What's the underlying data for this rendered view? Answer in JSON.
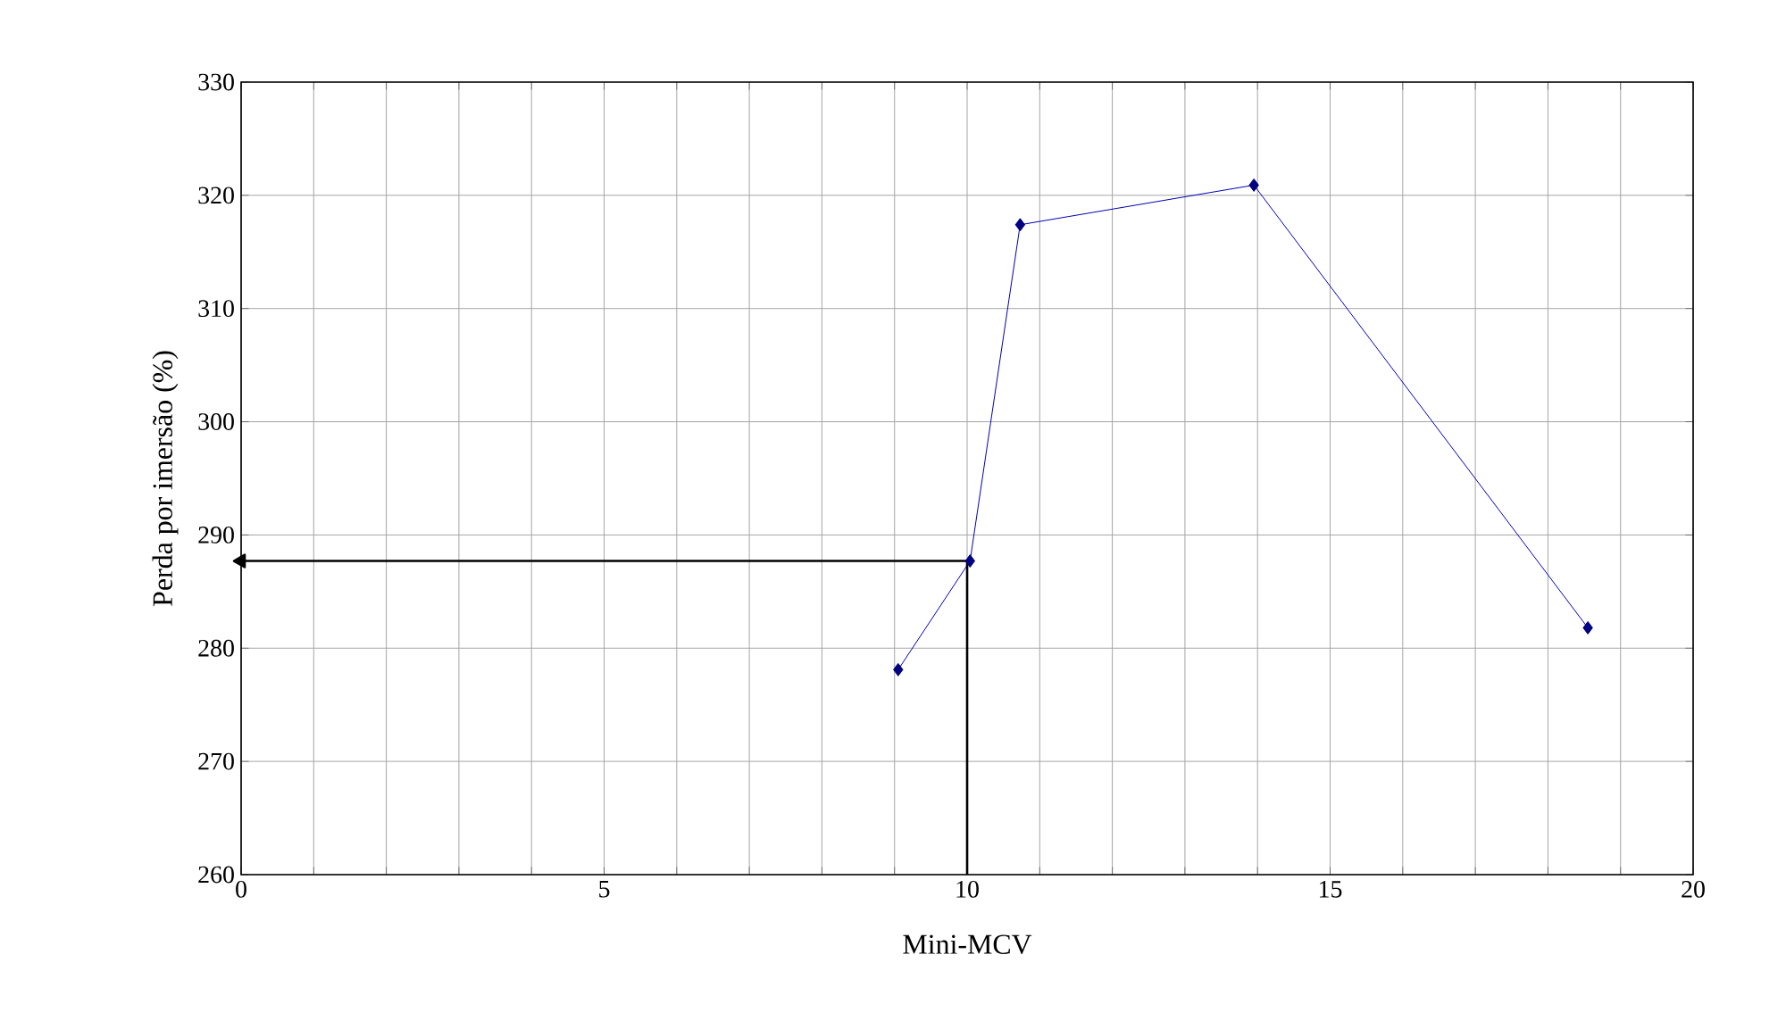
{
  "chart_data": {
    "type": "line",
    "xlabel": "Mini-MCV",
    "ylabel": "Perda por imersão (%)",
    "xlim": [
      0,
      20
    ],
    "ylim": [
      260,
      330
    ],
    "xticks": [
      0,
      {
        "value": 1,
        "label": null
      },
      {
        "value": 2,
        "label": null
      },
      {
        "value": 3,
        "label": null
      },
      {
        "value": 4,
        "label": null
      },
      5,
      {
        "value": 6,
        "label": null
      },
      {
        "value": 7,
        "label": null
      },
      {
        "value": 8,
        "label": null
      },
      {
        "value": 9,
        "label": null
      },
      10,
      {
        "value": 11,
        "label": null
      },
      {
        "value": 12,
        "label": null
      },
      {
        "value": 13,
        "label": null
      },
      {
        "value": 14,
        "label": null
      },
      15,
      {
        "value": 16,
        "label": null
      },
      {
        "value": 17,
        "label": null
      },
      {
        "value": 18,
        "label": null
      },
      {
        "value": 19,
        "label": null
      },
      20
    ],
    "yticks": [
      260,
      270,
      280,
      290,
      300,
      310,
      320,
      330
    ],
    "grid": true,
    "series": [
      {
        "x": [
          9.05,
          10.04,
          10.73,
          13.95,
          18.55
        ],
        "values": [
          278.1,
          287.7,
          317.4,
          320.9,
          281.8
        ],
        "color": "#000080",
        "marker": "diamond",
        "line_style": "solid"
      },
      {
        "x": [
          10,
          10,
          0
        ],
        "values": [
          260,
          287.7,
          287.7
        ],
        "color": "#000000",
        "marker": "none",
        "line_style": "solid"
      }
    ]
  }
}
